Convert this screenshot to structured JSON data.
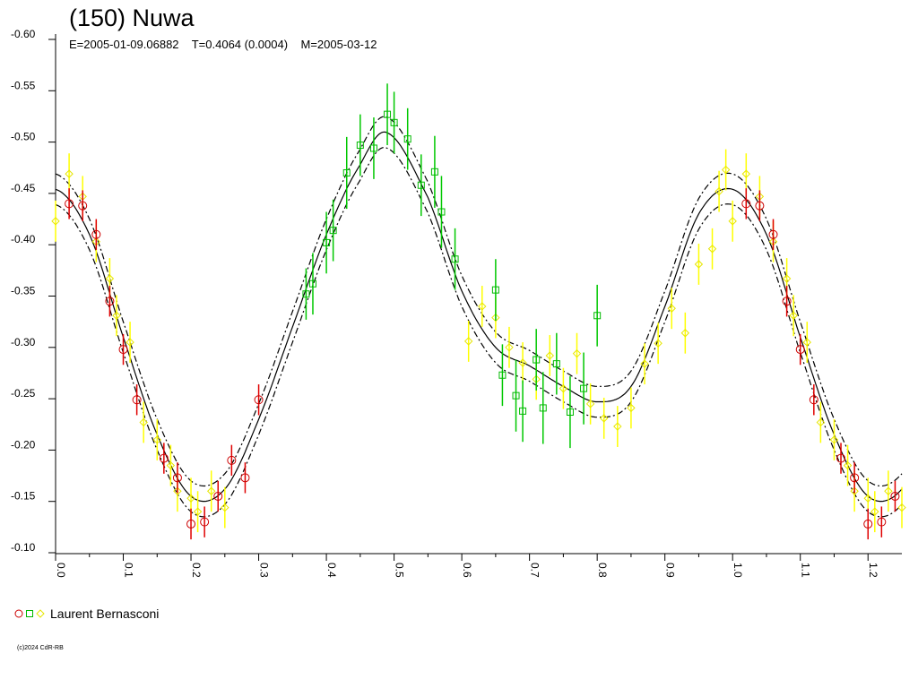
{
  "header": {
    "title": "(150) Nuwa",
    "subtitle": "E=2005-01-09.06882    T=0.4064 (0.0004)    M=2005-03-12"
  },
  "legend": {
    "label": "Laurent Bernasconi"
  },
  "footer": {
    "copyright": "(c)2024 CdR-RB"
  },
  "colors": {
    "red": "#e00000",
    "green": "#00c800",
    "yellow": "#ffff00",
    "redMarker": "#cc0000",
    "greenMarker": "#00b800",
    "yellowMarker": "#e6e600",
    "axis": "#000000"
  },
  "chart_data": {
    "type": "scatter",
    "x_ticks": [
      "0.0",
      "0.1",
      "0.2",
      "0.3",
      "0.4",
      "0.5",
      "0.6",
      "0.7",
      "0.8",
      "0.9",
      "1.0",
      "1.1",
      "1.2"
    ],
    "y_ticks": [
      "-0.60",
      "-0.55",
      "-0.50",
      "-0.45",
      "-0.40",
      "-0.35",
      "-0.30",
      "-0.25",
      "-0.20",
      "-0.15",
      "-0.10"
    ],
    "xlim": [
      0.0,
      1.25
    ],
    "ylim": [
      -0.6,
      -0.1
    ],
    "y_inverted": true,
    "fit_curve": {
      "phase_knots": [
        0.0,
        0.05,
        0.1,
        0.15,
        0.2,
        0.25,
        0.3,
        0.35,
        0.4,
        0.45,
        0.49,
        0.55,
        0.6,
        0.65,
        0.7,
        0.75,
        0.8,
        0.85,
        0.9,
        0.95,
        1.0
      ],
      "mag": [
        -0.454,
        -0.41,
        -0.31,
        -0.215,
        -0.155,
        -0.162,
        -0.23,
        -0.32,
        -0.41,
        -0.478,
        -0.509,
        -0.446,
        -0.355,
        -0.3,
        -0.282,
        -0.262,
        -0.247,
        -0.262,
        -0.34,
        -0.43,
        -0.454
      ],
      "envelope_offset": 0.015
    },
    "series": [
      {
        "color_key": "red",
        "marker": "circle",
        "points": [
          [
            0.02,
            -0.44,
            0.015
          ],
          [
            0.04,
            -0.438,
            0.015
          ],
          [
            0.06,
            -0.41,
            0.015
          ],
          [
            0.08,
            -0.345,
            0.015
          ],
          [
            0.1,
            -0.298,
            0.015
          ],
          [
            0.12,
            -0.249,
            0.015
          ],
          [
            0.16,
            -0.192,
            0.015
          ],
          [
            0.18,
            -0.173,
            0.015
          ],
          [
            0.2,
            -0.128,
            0.015
          ],
          [
            0.22,
            -0.13,
            0.015
          ],
          [
            0.24,
            -0.155,
            0.015
          ],
          [
            0.26,
            -0.19,
            0.015
          ],
          [
            0.28,
            -0.173,
            0.015
          ],
          [
            0.3,
            -0.249,
            0.015
          ],
          [
            1.02,
            -0.44,
            0.015
          ],
          [
            1.04,
            -0.438,
            0.015
          ],
          [
            1.06,
            -0.41,
            0.015
          ],
          [
            1.08,
            -0.345,
            0.015
          ],
          [
            1.1,
            -0.298,
            0.015
          ],
          [
            1.12,
            -0.249,
            0.015
          ],
          [
            1.16,
            -0.192,
            0.015
          ],
          [
            1.18,
            -0.173,
            0.015
          ],
          [
            1.2,
            -0.128,
            0.015
          ],
          [
            1.22,
            -0.13,
            0.015
          ],
          [
            1.24,
            -0.155,
            0.015
          ]
        ]
      },
      {
        "color_key": "green",
        "marker": "square",
        "points": [
          [
            0.37,
            -0.352,
            0.025
          ],
          [
            0.38,
            -0.362,
            0.03
          ],
          [
            0.4,
            -0.402,
            0.03
          ],
          [
            0.41,
            -0.414,
            0.03
          ],
          [
            0.43,
            -0.47,
            0.035
          ],
          [
            0.45,
            -0.497,
            0.03
          ],
          [
            0.47,
            -0.494,
            0.03
          ],
          [
            0.49,
            -0.527,
            0.03
          ],
          [
            0.5,
            -0.519,
            0.03
          ],
          [
            0.52,
            -0.503,
            0.03
          ],
          [
            0.54,
            -0.458,
            0.03
          ],
          [
            0.56,
            -0.471,
            0.035
          ],
          [
            0.57,
            -0.432,
            0.035
          ],
          [
            0.59,
            -0.386,
            0.03
          ],
          [
            0.65,
            -0.356,
            0.03
          ],
          [
            0.66,
            -0.273,
            0.03
          ],
          [
            0.68,
            -0.253,
            0.035
          ],
          [
            0.69,
            -0.238,
            0.03
          ],
          [
            0.71,
            -0.288,
            0.03
          ],
          [
            0.72,
            -0.241,
            0.035
          ],
          [
            0.74,
            -0.284,
            0.03
          ],
          [
            0.76,
            -0.237,
            0.035
          ],
          [
            0.78,
            -0.26,
            0.035
          ],
          [
            0.8,
            -0.331,
            0.03
          ]
        ]
      },
      {
        "color_key": "yellow",
        "marker": "diamond",
        "points": [
          [
            0.0,
            -0.423,
            0.02
          ],
          [
            0.02,
            -0.469,
            0.02
          ],
          [
            0.04,
            -0.447,
            0.02
          ],
          [
            0.06,
            -0.403,
            0.02
          ],
          [
            0.08,
            -0.367,
            0.02
          ],
          [
            0.09,
            -0.331,
            0.02
          ],
          [
            0.11,
            -0.305,
            0.02
          ],
          [
            0.13,
            -0.227,
            0.02
          ],
          [
            0.15,
            -0.21,
            0.02
          ],
          [
            0.17,
            -0.185,
            0.02
          ],
          [
            0.18,
            -0.16,
            0.02
          ],
          [
            0.2,
            -0.153,
            0.02
          ],
          [
            0.21,
            -0.14,
            0.02
          ],
          [
            0.23,
            -0.16,
            0.02
          ],
          [
            0.25,
            -0.144,
            0.02
          ],
          [
            0.61,
            -0.306,
            0.02
          ],
          [
            0.63,
            -0.34,
            0.02
          ],
          [
            0.65,
            -0.329,
            0.02
          ],
          [
            0.67,
            -0.3,
            0.02
          ],
          [
            0.69,
            -0.285,
            0.02
          ],
          [
            0.71,
            -0.269,
            0.02
          ],
          [
            0.73,
            -0.292,
            0.02
          ],
          [
            0.75,
            -0.26,
            0.02
          ],
          [
            0.77,
            -0.294,
            0.02
          ],
          [
            0.79,
            -0.245,
            0.02
          ],
          [
            0.81,
            -0.231,
            0.02
          ],
          [
            0.83,
            -0.223,
            0.02
          ],
          [
            0.85,
            -0.241,
            0.02
          ],
          [
            0.87,
            -0.284,
            0.02
          ],
          [
            0.89,
            -0.304,
            0.02
          ],
          [
            0.91,
            -0.338,
            0.02
          ],
          [
            0.93,
            -0.314,
            0.02
          ],
          [
            0.95,
            -0.381,
            0.02
          ],
          [
            0.97,
            -0.396,
            0.02
          ],
          [
            0.98,
            -0.452,
            0.02
          ],
          [
            0.99,
            -0.473,
            0.02
          ],
          [
            1.0,
            -0.423,
            0.02
          ],
          [
            1.02,
            -0.469,
            0.02
          ],
          [
            1.04,
            -0.447,
            0.02
          ],
          [
            1.06,
            -0.403,
            0.02
          ],
          [
            1.08,
            -0.367,
            0.02
          ],
          [
            1.09,
            -0.331,
            0.02
          ],
          [
            1.11,
            -0.305,
            0.02
          ],
          [
            1.13,
            -0.227,
            0.02
          ],
          [
            1.15,
            -0.21,
            0.02
          ],
          [
            1.17,
            -0.185,
            0.02
          ],
          [
            1.18,
            -0.16,
            0.02
          ],
          [
            1.2,
            -0.153,
            0.02
          ],
          [
            1.21,
            -0.14,
            0.02
          ],
          [
            1.23,
            -0.16,
            0.02
          ],
          [
            1.25,
            -0.144,
            0.02
          ]
        ]
      }
    ]
  }
}
